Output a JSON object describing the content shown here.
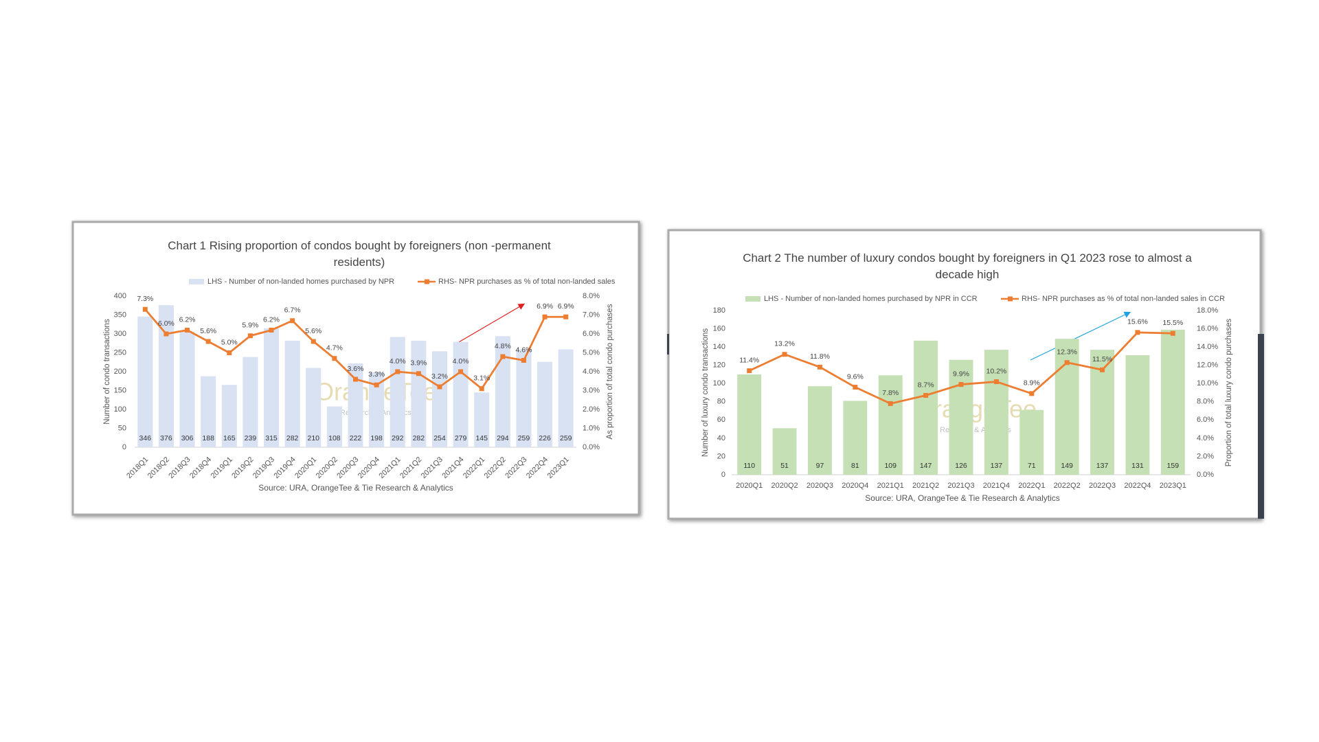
{
  "chart_data": [
    {
      "type": "combo",
      "title": "Chart 1 Rising proportion of condos bought by foreigners (non -permanent residents)",
      "categories": [
        "2018Q1",
        "2018Q2",
        "2018Q3",
        "2018Q4",
        "2019Q1",
        "2019Q2",
        "2019Q3",
        "2019Q4",
        "2020Q1",
        "2020Q2",
        "2020Q3",
        "2020Q4",
        "2021Q1",
        "2021Q2",
        "2021Q3",
        "2021Q4",
        "2022Q1",
        "2022Q2",
        "2022Q3",
        "2022Q4",
        "2023Q1"
      ],
      "series": [
        {
          "name": "LHS - Number of non-landed homes purchased by NPR",
          "color": "#d9e2f3",
          "kind": "bar",
          "values": [
            346,
            376,
            306,
            188,
            165,
            239,
            315,
            282,
            210,
            108,
            222,
            198,
            292,
            282,
            254,
            279,
            145,
            294,
            259,
            226,
            259
          ]
        },
        {
          "name": "RHS- NPR purchases as % of total non-landed sales",
          "color": "#ed7d31",
          "kind": "line",
          "axis": "y2",
          "values": [
            7.3,
            6.0,
            6.2,
            5.6,
            5.0,
            5.9,
            6.2,
            6.7,
            5.6,
            4.7,
            3.6,
            3.3,
            4.0,
            3.9,
            3.2,
            4.0,
            3.1,
            4.8,
            4.6,
            6.9,
            6.9
          ],
          "value_labels": [
            "7.3%",
            "6.0%",
            "6.2%",
            "5.6%",
            "5.0%",
            "5.9%",
            "6.2%",
            "6.7%",
            "5.6%",
            "4.7%",
            "3.6%",
            "3.3%",
            "4.0%",
            "3.9%",
            "3.2%",
            "4.0%",
            "3.1%",
            "4.8%",
            "4.6%",
            "6.9%",
            "6.9%"
          ]
        }
      ],
      "ylabel": "Number of condo transactions",
      "y2label": "As proportion of total condo purchases",
      "ylim": [
        0,
        400
      ],
      "yticks": [
        0,
        50,
        100,
        150,
        200,
        250,
        300,
        350,
        400
      ],
      "y2lim": [
        0,
        8
      ],
      "y2ticks": [
        {
          "value": 0,
          "label": "0.0%"
        },
        {
          "value": 1,
          "label": "1.0%"
        },
        {
          "value": 2,
          "label": "2.0%"
        },
        {
          "value": 3,
          "label": "3.0%"
        },
        {
          "value": 4,
          "label": "4.0%"
        },
        {
          "value": 5,
          "label": "5.0%"
        },
        {
          "value": 6,
          "label": "6.0%"
        },
        {
          "value": 7,
          "label": "7.0%"
        },
        {
          "value": 8,
          "label": "8.0%"
        }
      ],
      "source": "Source: URA, OrangeTee & Tie Research & Analytics",
      "watermark": {
        "brand": "OrangeTee",
        "tagline": "Research & Analytics"
      }
    },
    {
      "type": "combo",
      "title": "Chart 2 The number of luxury condos bought by foreigners in Q1 2023 rose to almost a decade high",
      "categories": [
        "2020Q1",
        "2020Q2",
        "2020Q3",
        "2020Q4",
        "2021Q1",
        "2021Q2",
        "2021Q3",
        "2021Q4",
        "2022Q1",
        "2022Q2",
        "2022Q3",
        "2022Q4",
        "2023Q1"
      ],
      "series": [
        {
          "name": "LHS - Number of non-landed homes purchased by NPR in CCR",
          "color": "#c5e0b4",
          "kind": "bar",
          "values": [
            110,
            51,
            97,
            81,
            109,
            147,
            126,
            137,
            71,
            149,
            137,
            131,
            159
          ]
        },
        {
          "name": "RHS- NPR purchases as % of total non-landed sales in CCR",
          "color": "#ed7d31",
          "kind": "line",
          "axis": "y2",
          "values": [
            11.4,
            13.2,
            11.8,
            9.6,
            7.8,
            8.7,
            9.9,
            10.2,
            8.9,
            12.3,
            11.5,
            15.6,
            15.5
          ],
          "value_labels": [
            "11.4%",
            "13.2%",
            "11.8%",
            "9.6%",
            "7.8%",
            "8.7%",
            "9.9%",
            "10.2%",
            "8.9%",
            "12.3%",
            "11.5%",
            "15.6%",
            "15.5%"
          ]
        }
      ],
      "ylabel": "Number of luxury condo transactions",
      "y2label": "Proportion of total luxury condo purchases",
      "ylim": [
        0,
        180
      ],
      "yticks": [
        0,
        20,
        40,
        60,
        80,
        100,
        120,
        140,
        160,
        180
      ],
      "y2lim": [
        0,
        18
      ],
      "y2ticks": [
        {
          "value": 0,
          "label": "0.0%"
        },
        {
          "value": 2,
          "label": "2.0%"
        },
        {
          "value": 4,
          "label": "4.0%"
        },
        {
          "value": 6,
          "label": "6.0%"
        },
        {
          "value": 8,
          "label": "8.0%"
        },
        {
          "value": 10,
          "label": "10.0%"
        },
        {
          "value": 12,
          "label": "12.0%"
        },
        {
          "value": 14,
          "label": "14.0%"
        },
        {
          "value": 16,
          "label": "16.0%"
        },
        {
          "value": 18,
          "label": "18.0%"
        }
      ],
      "source": "Source: URA, OrangeTee & Tie Research & Analytics",
      "watermark": {
        "brand": "OrangeTee",
        "tagline": "Research & Analytics"
      }
    }
  ]
}
